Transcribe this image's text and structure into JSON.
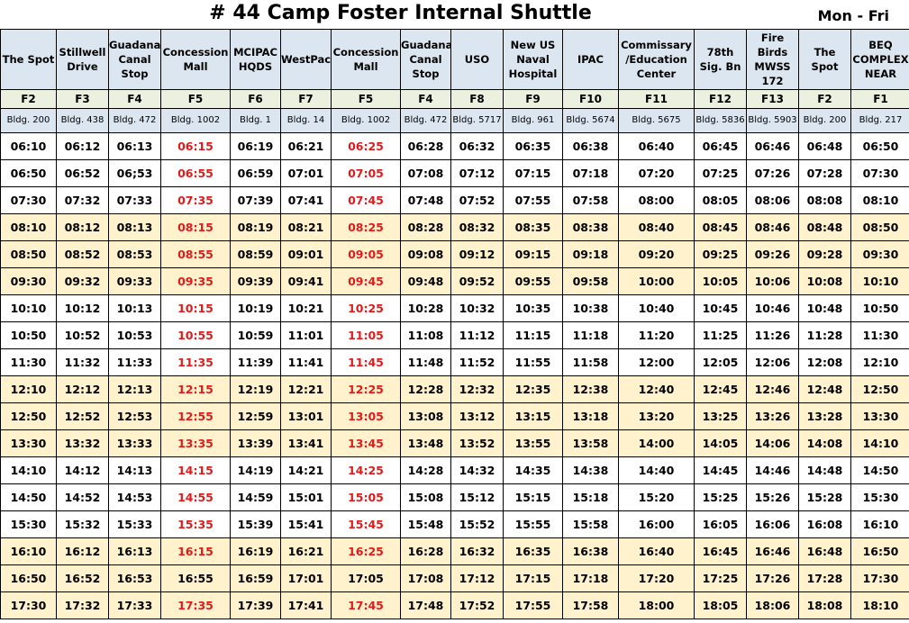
{
  "title": "# 44 Camp Foster Internal Shuttle",
  "days": "Mon - Fri",
  "stops": [
    {
      "name": "The Spot",
      "code": "F2",
      "bldg": "Bldg. 200"
    },
    {
      "name": "Stillwell Drive",
      "code": "F3",
      "bldg": "Bldg. 438"
    },
    {
      "name": "Guadanal Canal Stop",
      "code": "F4",
      "bldg": "Bldg. 472"
    },
    {
      "name": "Concession Mall",
      "code": "F5",
      "bldg": "Bldg. 1002"
    },
    {
      "name": "MCIPAC HQDS",
      "code": "F6",
      "bldg": "Bldg. 1"
    },
    {
      "name": "WestPac",
      "code": "F7",
      "bldg": "Bldg. 14"
    },
    {
      "name": "Concession Mall",
      "code": "F5",
      "bldg": "Bldg. 1002"
    },
    {
      "name": "Guadanal Canal Stop",
      "code": "F4",
      "bldg": "Bldg. 472"
    },
    {
      "name": "USO",
      "code": "F8",
      "bldg": "Bldg. 5717"
    },
    {
      "name": "New US Naval Hospital",
      "code": "F9",
      "bldg": "Bldg. 961"
    },
    {
      "name": "IPAC",
      "code": "F10",
      "bldg": "Bldg. 5674"
    },
    {
      "name": "Commissary /Education Center",
      "code": "F11",
      "bldg": "Bldg. 5675"
    },
    {
      "name": "78th Sig. Bn",
      "code": "F12",
      "bldg": "Bldg. 5836"
    },
    {
      "name": "Fire Birds MWSS 172",
      "code": "F13",
      "bldg": "Bldg. 5903"
    },
    {
      "name": "The Spot",
      "code": "F2",
      "bldg": "Bldg. 200"
    },
    {
      "name": "BEQ COMPLEX NEAR",
      "code": "F1",
      "bldg": "Bldg. 217"
    }
  ],
  "highlight_color": "#e01b1b",
  "rows": [
    {
      "shaded": false,
      "red": true,
      "times": [
        "06:10",
        "06:12",
        "06:13",
        "06:15",
        "06:19",
        "06:21",
        "06:25",
        "06:28",
        "06:32",
        "06:35",
        "06:38",
        "06:40",
        "06:45",
        "06:46",
        "06:48",
        "06:50"
      ]
    },
    {
      "shaded": false,
      "red": true,
      "times": [
        "06:50",
        "06:52",
        "06;53",
        "06:55",
        "06:59",
        "07:01",
        "07:05",
        "07:08",
        "07:12",
        "07:15",
        "07:18",
        "07:20",
        "07:25",
        "07:26",
        "07:28",
        "07:30"
      ]
    },
    {
      "shaded": false,
      "red": true,
      "times": [
        "07:30",
        "07:32",
        "07:33",
        "07:35",
        "07:39",
        "07:41",
        "07:45",
        "07:48",
        "07:52",
        "07:55",
        "07:58",
        "08:00",
        "08:05",
        "08:06",
        "08:08",
        "08:10"
      ]
    },
    {
      "shaded": true,
      "red": true,
      "times": [
        "08:10",
        "08:12",
        "08:13",
        "08:15",
        "08:19",
        "08:21",
        "08:25",
        "08:28",
        "08:32",
        "08:35",
        "08:38",
        "08:40",
        "08:45",
        "08:46",
        "08:48",
        "08:50"
      ]
    },
    {
      "shaded": true,
      "red": true,
      "times": [
        "08:50",
        "08:52",
        "08:53",
        "08:55",
        "08:59",
        "09:01",
        "09:05",
        "09:08",
        "09:12",
        "09:15",
        "09:18",
        "09:20",
        "09:25",
        "09:26",
        "09:28",
        "09:30"
      ]
    },
    {
      "shaded": true,
      "red": true,
      "times": [
        "09:30",
        "09:32",
        "09:33",
        "09:35",
        "09:39",
        "09:41",
        "09:45",
        "09:48",
        "09:52",
        "09:55",
        "09:58",
        "10:00",
        "10:05",
        "10:06",
        "10:08",
        "10:10"
      ]
    },
    {
      "shaded": false,
      "red": true,
      "times": [
        "10:10",
        "10:12",
        "10:13",
        "10:15",
        "10:19",
        "10:21",
        "10:25",
        "10:28",
        "10:32",
        "10:35",
        "10:38",
        "10:40",
        "10:45",
        "10:46",
        "10:48",
        "10:50"
      ]
    },
    {
      "shaded": false,
      "red": true,
      "times": [
        "10:50",
        "10:52",
        "10:53",
        "10:55",
        "10:59",
        "11:01",
        "11:05",
        "11:08",
        "11:12",
        "11:15",
        "11:18",
        "11:20",
        "11:25",
        "11:26",
        "11:28",
        "11:30"
      ]
    },
    {
      "shaded": false,
      "red": true,
      "times": [
        "11:30",
        "11:32",
        "11:33",
        "11:35",
        "11:39",
        "11:41",
        "11:45",
        "11:48",
        "11:52",
        "11:55",
        "11:58",
        "12:00",
        "12:05",
        "12:06",
        "12:08",
        "12:10"
      ]
    },
    {
      "shaded": true,
      "red": true,
      "times": [
        "12:10",
        "12:12",
        "12:13",
        "12:15",
        "12:19",
        "12:21",
        "12:25",
        "12:28",
        "12:32",
        "12:35",
        "12:38",
        "12:40",
        "12:45",
        "12:46",
        "12:48",
        "12:50"
      ]
    },
    {
      "shaded": true,
      "red": true,
      "times": [
        "12:50",
        "12:52",
        "12:53",
        "12:55",
        "12:59",
        "13:01",
        "13:05",
        "13:08",
        "13:12",
        "13:15",
        "13:18",
        "13:20",
        "13:25",
        "13:26",
        "13:28",
        "13:30"
      ]
    },
    {
      "shaded": true,
      "red": true,
      "times": [
        "13:30",
        "13:32",
        "13:33",
        "13:35",
        "13:39",
        "13:41",
        "13:45",
        "13:48",
        "13:52",
        "13:55",
        "13:58",
        "14:00",
        "14:05",
        "14:06",
        "14:08",
        "14:10"
      ]
    },
    {
      "shaded": false,
      "red": true,
      "times": [
        "14:10",
        "14:12",
        "14:13",
        "14:15",
        "14:19",
        "14:21",
        "14:25",
        "14:28",
        "14:32",
        "14:35",
        "14:38",
        "14:40",
        "14:45",
        "14:46",
        "14:48",
        "14:50"
      ]
    },
    {
      "shaded": false,
      "red": true,
      "times": [
        "14:50",
        "14:52",
        "14:53",
        "14:55",
        "14:59",
        "15:01",
        "15:05",
        "15:08",
        "15:12",
        "15:15",
        "15:18",
        "15:20",
        "15:25",
        "15:26",
        "15:28",
        "15:30"
      ]
    },
    {
      "shaded": false,
      "red": true,
      "times": [
        "15:30",
        "15:32",
        "15:33",
        "15:35",
        "15:39",
        "15:41",
        "15:45",
        "15:48",
        "15:52",
        "15:55",
        "15:58",
        "16:00",
        "16:05",
        "16:06",
        "16:08",
        "16:10"
      ]
    },
    {
      "shaded": true,
      "red": true,
      "times": [
        "16:10",
        "16:12",
        "16:13",
        "16:15",
        "16:19",
        "16:21",
        "16:25",
        "16:28",
        "16:32",
        "16:35",
        "16:38",
        "16:40",
        "16:45",
        "16:46",
        "16:48",
        "16:50"
      ]
    },
    {
      "shaded": true,
      "red": false,
      "times": [
        "16:50",
        "16:52",
        "16:53",
        "16:55",
        "16:59",
        "17:01",
        "17:05",
        "17:08",
        "17:12",
        "17:15",
        "17:18",
        "17:20",
        "17:25",
        "17:26",
        "17:28",
        "17:30"
      ]
    },
    {
      "shaded": true,
      "red": true,
      "times": [
        "17:30",
        "17:32",
        "17:33",
        "17:35",
        "17:39",
        "17:41",
        "17:45",
        "17:48",
        "17:52",
        "17:55",
        "17:58",
        "18:00",
        "18:05",
        "18:06",
        "18:08",
        "18:10"
      ]
    }
  ]
}
